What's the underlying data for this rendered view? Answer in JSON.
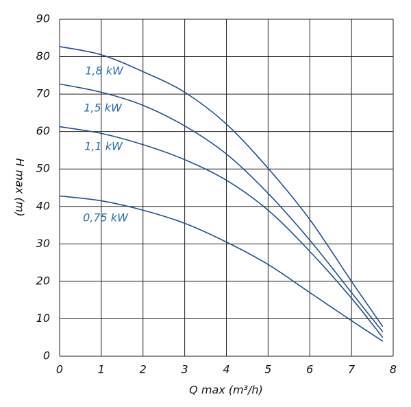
{
  "chart_data": {
    "type": "line",
    "x_label": "Q max (m³/h)",
    "y_label": "H max (m)",
    "x": [
      0,
      1,
      2,
      3,
      4,
      5,
      6,
      7,
      7.75
    ],
    "series": [
      {
        "name": "1,8 kW",
        "color": "#1f4f8f",
        "values": [
          82.7,
          80.5,
          76,
          70.5,
          62,
          50.2,
          36.5,
          20,
          7.9
        ]
      },
      {
        "name": "1,5 kW",
        "color": "#1f4f8f",
        "values": [
          72.7,
          70.5,
          67,
          61.5,
          54,
          43.5,
          31,
          17,
          6.5
        ]
      },
      {
        "name": "1,1 kW",
        "color": "#1f4f8f",
        "values": [
          61.3,
          59.5,
          56.5,
          52.5,
          47,
          39,
          28,
          15.5,
          5
        ]
      },
      {
        "name": "0,75 kW",
        "color": "#1f4f8f",
        "values": [
          42.8,
          41.5,
          39,
          35.5,
          30.5,
          24.5,
          17,
          9.5,
          4
        ]
      }
    ],
    "label_color": "#2a6db2",
    "xlim": [
      0,
      8
    ],
    "xticks": [
      0,
      1,
      2,
      3,
      4,
      5,
      6,
      7,
      8
    ],
    "ylim": [
      0,
      90
    ],
    "yticks": [
      0,
      10,
      20,
      30,
      40,
      50,
      60,
      70,
      80,
      90
    ],
    "grid": true
  }
}
